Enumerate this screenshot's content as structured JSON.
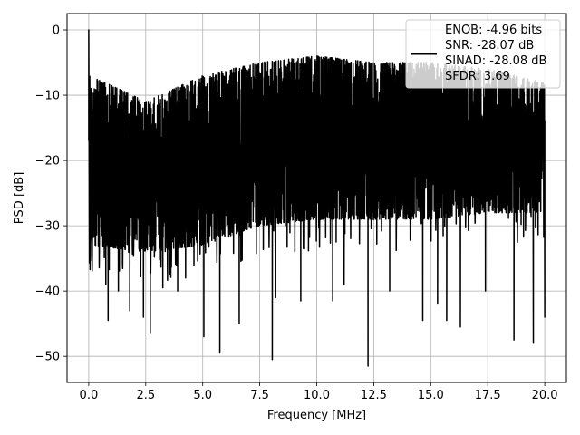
{
  "chart_data": {
    "type": "line",
    "xlabel": "Frequency [MHz]",
    "ylabel": "PSD [dB]",
    "xlim": [
      -0.95,
      20.95
    ],
    "ylim": [
      -54,
      2.5
    ],
    "xticks": [
      0.0,
      2.5,
      5.0,
      7.5,
      10.0,
      12.5,
      15.0,
      17.5,
      20.0
    ],
    "xtick_labels": [
      "0.0",
      "2.5",
      "5.0",
      "7.5",
      "10.0",
      "12.5",
      "15.0",
      "17.5",
      "20.0"
    ],
    "yticks": [
      0,
      -10,
      -20,
      -30,
      -40,
      -50
    ],
    "ytick_labels": [
      "0",
      "−10",
      "−20",
      "−30",
      "−40",
      "−50"
    ],
    "grid": true,
    "line_color": "#000000",
    "legend": {
      "placement": "upper right",
      "lines": [
        "ENOB: -4.96 bits",
        "SNR: -28.07 dB",
        "SINAD: -28.08 dB",
        "SFDR: 3.69"
      ]
    },
    "series": [
      {
        "x_start": 0.0,
        "x_end": 20.0,
        "peak": {
          "x": 0.0,
          "y": 0.0
        },
        "noise_band_top": [
          [
            0.1,
            -7
          ],
          [
            2.5,
            -11
          ],
          [
            5.0,
            -7
          ],
          [
            7.5,
            -5
          ],
          [
            10.0,
            -4
          ],
          [
            12.5,
            -5
          ],
          [
            15.0,
            -5
          ],
          [
            17.5,
            -6
          ],
          [
            20.0,
            -8
          ]
        ],
        "noise_band_bottom": [
          [
            0.1,
            -33
          ],
          [
            2.5,
            -34
          ],
          [
            5.0,
            -33
          ],
          [
            7.5,
            -30
          ],
          [
            10.0,
            -29
          ],
          [
            12.5,
            -29
          ],
          [
            15.0,
            -29
          ],
          [
            17.5,
            -28
          ],
          [
            20.0,
            -28
          ]
        ],
        "deep_dips": [
          [
            0.3,
            -33
          ],
          [
            0.75,
            -39
          ],
          [
            0.85,
            -44.5
          ],
          [
            1.3,
            -40
          ],
          [
            1.8,
            -43
          ],
          [
            2.4,
            -44
          ],
          [
            2.7,
            -46.5
          ],
          [
            3.25,
            -39.5
          ],
          [
            3.9,
            -40
          ],
          [
            4.25,
            -38
          ],
          [
            5.05,
            -47
          ],
          [
            5.75,
            -49.5
          ],
          [
            6.6,
            -45
          ],
          [
            8.05,
            -50.5
          ],
          [
            8.2,
            -41
          ],
          [
            9.3,
            -41.5
          ],
          [
            10.7,
            -41.5
          ],
          [
            11.2,
            -39
          ],
          [
            12.25,
            -51.5
          ],
          [
            13.2,
            -40
          ],
          [
            14.65,
            -44.5
          ],
          [
            15.3,
            -42
          ],
          [
            15.7,
            -44.5
          ],
          [
            16.3,
            -45.5
          ],
          [
            17.4,
            -40
          ],
          [
            18.65,
            -47.5
          ],
          [
            19.5,
            -48
          ],
          [
            20.0,
            -44
          ]
        ]
      }
    ]
  }
}
